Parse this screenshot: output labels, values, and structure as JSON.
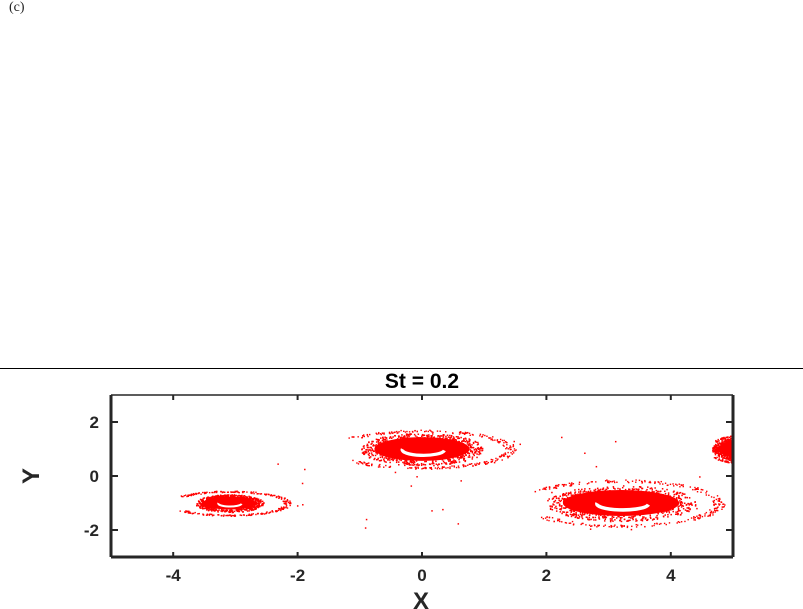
{
  "panel_label": "(c)",
  "chart_data": {
    "type": "scatter",
    "title": "St = 0.2",
    "xlabel": "X",
    "ylabel": "Y",
    "xlim": [
      -5,
      5
    ],
    "ylim": [
      -3,
      3
    ],
    "xticks": [
      -4,
      -2,
      0,
      2,
      4
    ],
    "xtick_labels": [
      "-4",
      "-2",
      "0",
      "2",
      "4"
    ],
    "yticks": [
      -2,
      0,
      2
    ],
    "ytick_labels": [
      "-2",
      "0",
      "2"
    ],
    "grid": false,
    "legend": null,
    "marker_color": "#ff0000",
    "clusters": [
      {
        "name": "left-vortex",
        "center": [
          -3.1,
          -1.0
        ],
        "core_rx": 0.5,
        "core_ry": 0.3,
        "spiral_rx": 0.95,
        "spiral_ry": 0.45
      },
      {
        "name": "center-vortex",
        "center": [
          0.0,
          1.0
        ],
        "core_rx": 0.9,
        "core_ry": 0.55,
        "spiral_rx": 1.45,
        "spiral_ry": 0.7
      },
      {
        "name": "right-vortex",
        "center": [
          3.2,
          -1.0
        ],
        "core_rx": 1.1,
        "core_ry": 0.6,
        "spiral_rx": 1.6,
        "spiral_ry": 0.85
      },
      {
        "name": "partial-edge-vortex",
        "center": [
          5.1,
          1.0
        ],
        "core_rx": 0.4,
        "core_ry": 0.4,
        "spiral_rx": 0.5,
        "spiral_ry": 0.5
      }
    ]
  }
}
